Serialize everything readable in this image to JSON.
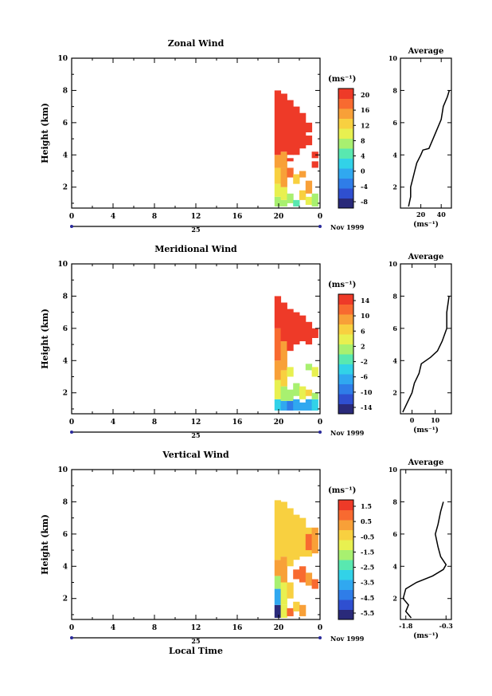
{
  "chart_data": [
    {
      "type": "heatmap",
      "title": "Zonal Wind",
      "ylabel": "Height (km)",
      "xlabel": "",
      "xlim": [
        0,
        24
      ],
      "ylim": [
        0.7,
        10
      ],
      "xticks": [
        "0",
        "4",
        "8",
        "12",
        "16",
        "20",
        "0"
      ],
      "yticks": [
        "2",
        "4",
        "6",
        "8",
        "10"
      ],
      "date_tick_label": "25",
      "date_suffix": "Nov 1999",
      "colorbar": {
        "unit": "(ms⁻¹)",
        "ticks": [
          "20",
          "16",
          "12",
          "8",
          "4",
          "0",
          "-4",
          "-8"
        ],
        "min": -10,
        "max": 22
      },
      "field_columns": [
        {
          "t": 19.9,
          "bands": [
            [
              0.8,
              1.4,
              6
            ],
            [
              1.4,
              2.2,
              9
            ],
            [
              2.2,
              3.2,
              12
            ],
            [
              3.2,
              4.0,
              16
            ],
            [
              4.0,
              8.0,
              21
            ]
          ]
        },
        {
          "t": 20.5,
          "bands": [
            [
              0.8,
              1.2,
              7
            ],
            [
              1.2,
              2.0,
              11
            ],
            [
              2.0,
              3.2,
              14
            ],
            [
              3.2,
              4.2,
              15
            ],
            [
              4.2,
              7.8,
              21
            ]
          ]
        },
        {
          "t": 21.1,
          "bands": [
            [
              1.0,
              1.6,
              6
            ],
            [
              2.6,
              3.2,
              17
            ],
            [
              3.6,
              3.8,
              21
            ],
            [
              4.0,
              7.4,
              21
            ]
          ]
        },
        {
          "t": 21.7,
          "bands": [
            [
              0.8,
              1.2,
              5
            ],
            [
              2.2,
              2.8,
              13
            ],
            [
              4.0,
              7.0,
              21
            ]
          ]
        },
        {
          "t": 22.3,
          "bands": [
            [
              1.2,
              1.8,
              12
            ],
            [
              2.6,
              3.0,
              16
            ],
            [
              4.4,
              6.6,
              21
            ]
          ]
        },
        {
          "t": 22.9,
          "bands": [
            [
              0.9,
              1.4,
              11
            ],
            [
              1.6,
              2.4,
              15
            ],
            [
              4.6,
              5.2,
              21
            ],
            [
              5.4,
              6.0,
              21
            ]
          ]
        },
        {
          "t": 23.5,
          "bands": [
            [
              0.8,
              1.6,
              6
            ],
            [
              3.2,
              3.6,
              21
            ],
            [
              3.8,
              4.2,
              21
            ]
          ]
        }
      ],
      "average_profile": {
        "title": "Average",
        "xlabel": "(ms⁻¹)",
        "xticks": [
          "20",
          "40"
        ],
        "xlim": [
          0,
          50
        ],
        "points": [
          [
            8,
            0.8
          ],
          [
            10,
            1.4
          ],
          [
            10,
            2.0
          ],
          [
            12,
            2.5
          ],
          [
            14,
            3.0
          ],
          [
            16,
            3.5
          ],
          [
            20,
            4.0
          ],
          [
            22,
            4.3
          ],
          [
            28,
            4.4
          ],
          [
            32,
            5.0
          ],
          [
            36,
            5.6
          ],
          [
            40,
            6.2
          ],
          [
            42,
            7.0
          ],
          [
            46,
            7.6
          ],
          [
            48,
            8.0
          ]
        ]
      }
    },
    {
      "type": "heatmap",
      "title": "Meridional Wind",
      "ylabel": "Height (km)",
      "xlabel": "",
      "xlim": [
        0,
        24
      ],
      "ylim": [
        0.7,
        10
      ],
      "xticks": [
        "0",
        "4",
        "8",
        "12",
        "16",
        "20",
        "0"
      ],
      "yticks": [
        "2",
        "4",
        "6",
        "8",
        "10"
      ],
      "date_tick_label": "25",
      "date_suffix": "Nov 1999",
      "colorbar": {
        "unit": "(ms⁻¹)",
        "ticks": [
          "14",
          "10",
          "6",
          "2",
          "-2",
          "-6",
          "-10",
          "-14"
        ],
        "min": -16,
        "max": 16
      },
      "field_columns": [
        {
          "t": 19.9,
          "bands": [
            [
              0.9,
              1.6,
              -4
            ],
            [
              1.6,
              2.8,
              4
            ],
            [
              2.8,
              4.0,
              8
            ],
            [
              4.0,
              6.0,
              12
            ],
            [
              6.0,
              8.0,
              15
            ]
          ]
        },
        {
          "t": 20.5,
          "bands": [
            [
              0.9,
              1.5,
              -8
            ],
            [
              1.5,
              2.4,
              2
            ],
            [
              2.4,
              3.4,
              6
            ],
            [
              3.4,
              5.2,
              10
            ],
            [
              5.2,
              7.6,
              15
            ]
          ]
        },
        {
          "t": 21.1,
          "bands": [
            [
              0.9,
              1.5,
              -10
            ],
            [
              1.5,
              2.2,
              0
            ],
            [
              3.0,
              3.6,
              4
            ],
            [
              4.6,
              7.2,
              15
            ]
          ]
        },
        {
          "t": 21.7,
          "bands": [
            [
              0.9,
              1.6,
              -6
            ],
            [
              1.8,
              2.6,
              2
            ],
            [
              5.0,
              7.0,
              15
            ]
          ]
        },
        {
          "t": 22.3,
          "bands": [
            [
              0.9,
              1.4,
              -8
            ],
            [
              1.6,
              2.4,
              4
            ],
            [
              5.2,
              6.8,
              15
            ]
          ]
        },
        {
          "t": 22.9,
          "bands": [
            [
              0.9,
              1.6,
              -6
            ],
            [
              1.8,
              2.2,
              6
            ],
            [
              5.0,
              6.4,
              15
            ],
            [
              3.4,
              3.8,
              2
            ]
          ]
        },
        {
          "t": 23.5,
          "bands": [
            [
              0.9,
              1.6,
              -4
            ],
            [
              1.6,
              2.0,
              2
            ],
            [
              5.4,
              6.0,
              15
            ],
            [
              3.0,
              3.6,
              4
            ]
          ]
        }
      ],
      "average_profile": {
        "title": "Average",
        "xlabel": "(ms⁻¹)",
        "xticks": [
          "0",
          "10"
        ],
        "xlim": [
          -5,
          17
        ],
        "points": [
          [
            -4,
            0.8
          ],
          [
            -2,
            1.4
          ],
          [
            0,
            2.0
          ],
          [
            1,
            2.6
          ],
          [
            3,
            3.2
          ],
          [
            4,
            3.8
          ],
          [
            8,
            4.2
          ],
          [
            11,
            4.6
          ],
          [
            13,
            5.2
          ],
          [
            15,
            6.0
          ],
          [
            15,
            7.0
          ],
          [
            16,
            8.0
          ]
        ]
      }
    },
    {
      "type": "heatmap",
      "title": "Vertical Wind",
      "ylabel": "Height (km)",
      "xlabel": "Local Time",
      "xlim": [
        0,
        24
      ],
      "ylim": [
        0.7,
        10
      ],
      "xticks": [
        "0",
        "4",
        "8",
        "12",
        "16",
        "20",
        "0"
      ],
      "yticks": [
        "2",
        "4",
        "6",
        "8",
        "10"
      ],
      "date_tick_label": "25",
      "date_suffix": "Nov 1999",
      "colorbar": {
        "unit": "(ms⁻¹)",
        "ticks": [
          "1.5",
          "0.5",
          "-0.5",
          "-1.5",
          "-2.5",
          "-3.5",
          "-4.5",
          "-5.5"
        ],
        "min": -6,
        "max": 2
      },
      "field_columns": [
        {
          "t": 19.9,
          "bands": [
            [
              0.8,
              1.6,
              -5.5
            ],
            [
              1.6,
              2.6,
              -3.5
            ],
            [
              2.6,
              3.4,
              -1.5
            ],
            [
              3.4,
              4.4,
              0.5
            ],
            [
              4.4,
              8.1,
              -0.5
            ]
          ]
        },
        {
          "t": 20.5,
          "bands": [
            [
              0.8,
              1.6,
              -1.0
            ],
            [
              1.6,
              3.0,
              -0.8
            ],
            [
              3.0,
              4.6,
              0.4
            ],
            [
              4.6,
              8.0,
              -0.6
            ]
          ]
        },
        {
          "t": 21.1,
          "bands": [
            [
              0.9,
              1.4,
              0.8
            ],
            [
              2.0,
              3.0,
              -0.6
            ],
            [
              4.0,
              7.6,
              -0.6
            ]
          ]
        },
        {
          "t": 21.7,
          "bands": [
            [
              1.2,
              1.8,
              -0.6
            ],
            [
              3.2,
              3.8,
              0.8
            ],
            [
              4.4,
              7.2,
              -0.4
            ]
          ]
        },
        {
          "t": 22.3,
          "bands": [
            [
              0.9,
              1.6,
              0.6
            ],
            [
              3.0,
              4.0,
              0.8
            ],
            [
              4.6,
              7.0,
              -0.6
            ]
          ]
        },
        {
          "t": 22.9,
          "bands": [
            [
              2.8,
              3.6,
              0.6
            ],
            [
              4.6,
              6.4,
              -0.2
            ],
            [
              5.0,
              6.0,
              0.8
            ]
          ]
        },
        {
          "t": 23.5,
          "bands": [
            [
              4.8,
              6.4,
              0.6
            ],
            [
              2.6,
              3.2,
              0.8
            ]
          ]
        }
      ],
      "average_profile": {
        "title": "Average",
        "xlabel": "(ms⁻¹)",
        "xticks": [
          "-1.8",
          "-0.3"
        ],
        "xlim": [
          -2.0,
          -0.1
        ],
        "points": [
          [
            -1.6,
            0.8
          ],
          [
            -1.8,
            1.2
          ],
          [
            -1.7,
            1.6
          ],
          [
            -1.9,
            2.0
          ],
          [
            -1.8,
            2.6
          ],
          [
            -1.4,
            3.0
          ],
          [
            -0.8,
            3.4
          ],
          [
            -0.4,
            3.8
          ],
          [
            -0.3,
            4.1
          ],
          [
            -0.5,
            4.6
          ],
          [
            -0.6,
            5.2
          ],
          [
            -0.7,
            6.0
          ],
          [
            -0.6,
            6.6
          ],
          [
            -0.5,
            7.4
          ],
          [
            -0.4,
            8.0
          ]
        ]
      }
    }
  ],
  "colormap": [
    "#2a2a7a",
    "#2f4fd0",
    "#2f7de8",
    "#30a8f0",
    "#32d2e8",
    "#59e8b0",
    "#a8f070",
    "#e8f050",
    "#f8d040",
    "#f8a038",
    "#f86a30",
    "#ee3a28"
  ]
}
